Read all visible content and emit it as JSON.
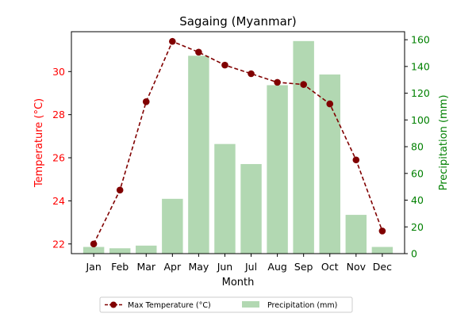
{
  "chart_data": {
    "type": "bar+line",
    "title": "Sagaing (Myanmar)",
    "xlabel": "Month",
    "ylabel_left": "Temperature (°C)",
    "ylabel_right": "Precipitation (mm)",
    "categories": [
      "Jan",
      "Feb",
      "Mar",
      "Apr",
      "May",
      "Jun",
      "Jul",
      "Aug",
      "Sep",
      "Oct",
      "Nov",
      "Dec"
    ],
    "series": [
      {
        "name": "Max Temperature (°C)",
        "type": "line",
        "axis": "left",
        "color": "#800000",
        "values": [
          22.0,
          24.5,
          28.6,
          31.4,
          30.9,
          30.3,
          29.9,
          29.5,
          29.4,
          28.5,
          25.9,
          22.6
        ]
      },
      {
        "name": "Precipitation (mm)",
        "type": "bar",
        "axis": "right",
        "color": "#b2d8b2",
        "values": [
          5,
          4,
          6,
          41,
          148,
          82,
          67,
          126,
          159,
          134,
          29,
          5
        ]
      }
    ],
    "ylim_left": [
      21.55,
      31.85
    ],
    "yticks_left": [
      22,
      24,
      26,
      28,
      30
    ],
    "ylim_right": [
      0,
      166
    ],
    "yticks_right": [
      0,
      20,
      40,
      60,
      80,
      100,
      120,
      140,
      160
    ],
    "left_axis_color": "#ff0000",
    "right_axis_color": "#008000",
    "grid": false,
    "legend_position": "bottom-center"
  }
}
